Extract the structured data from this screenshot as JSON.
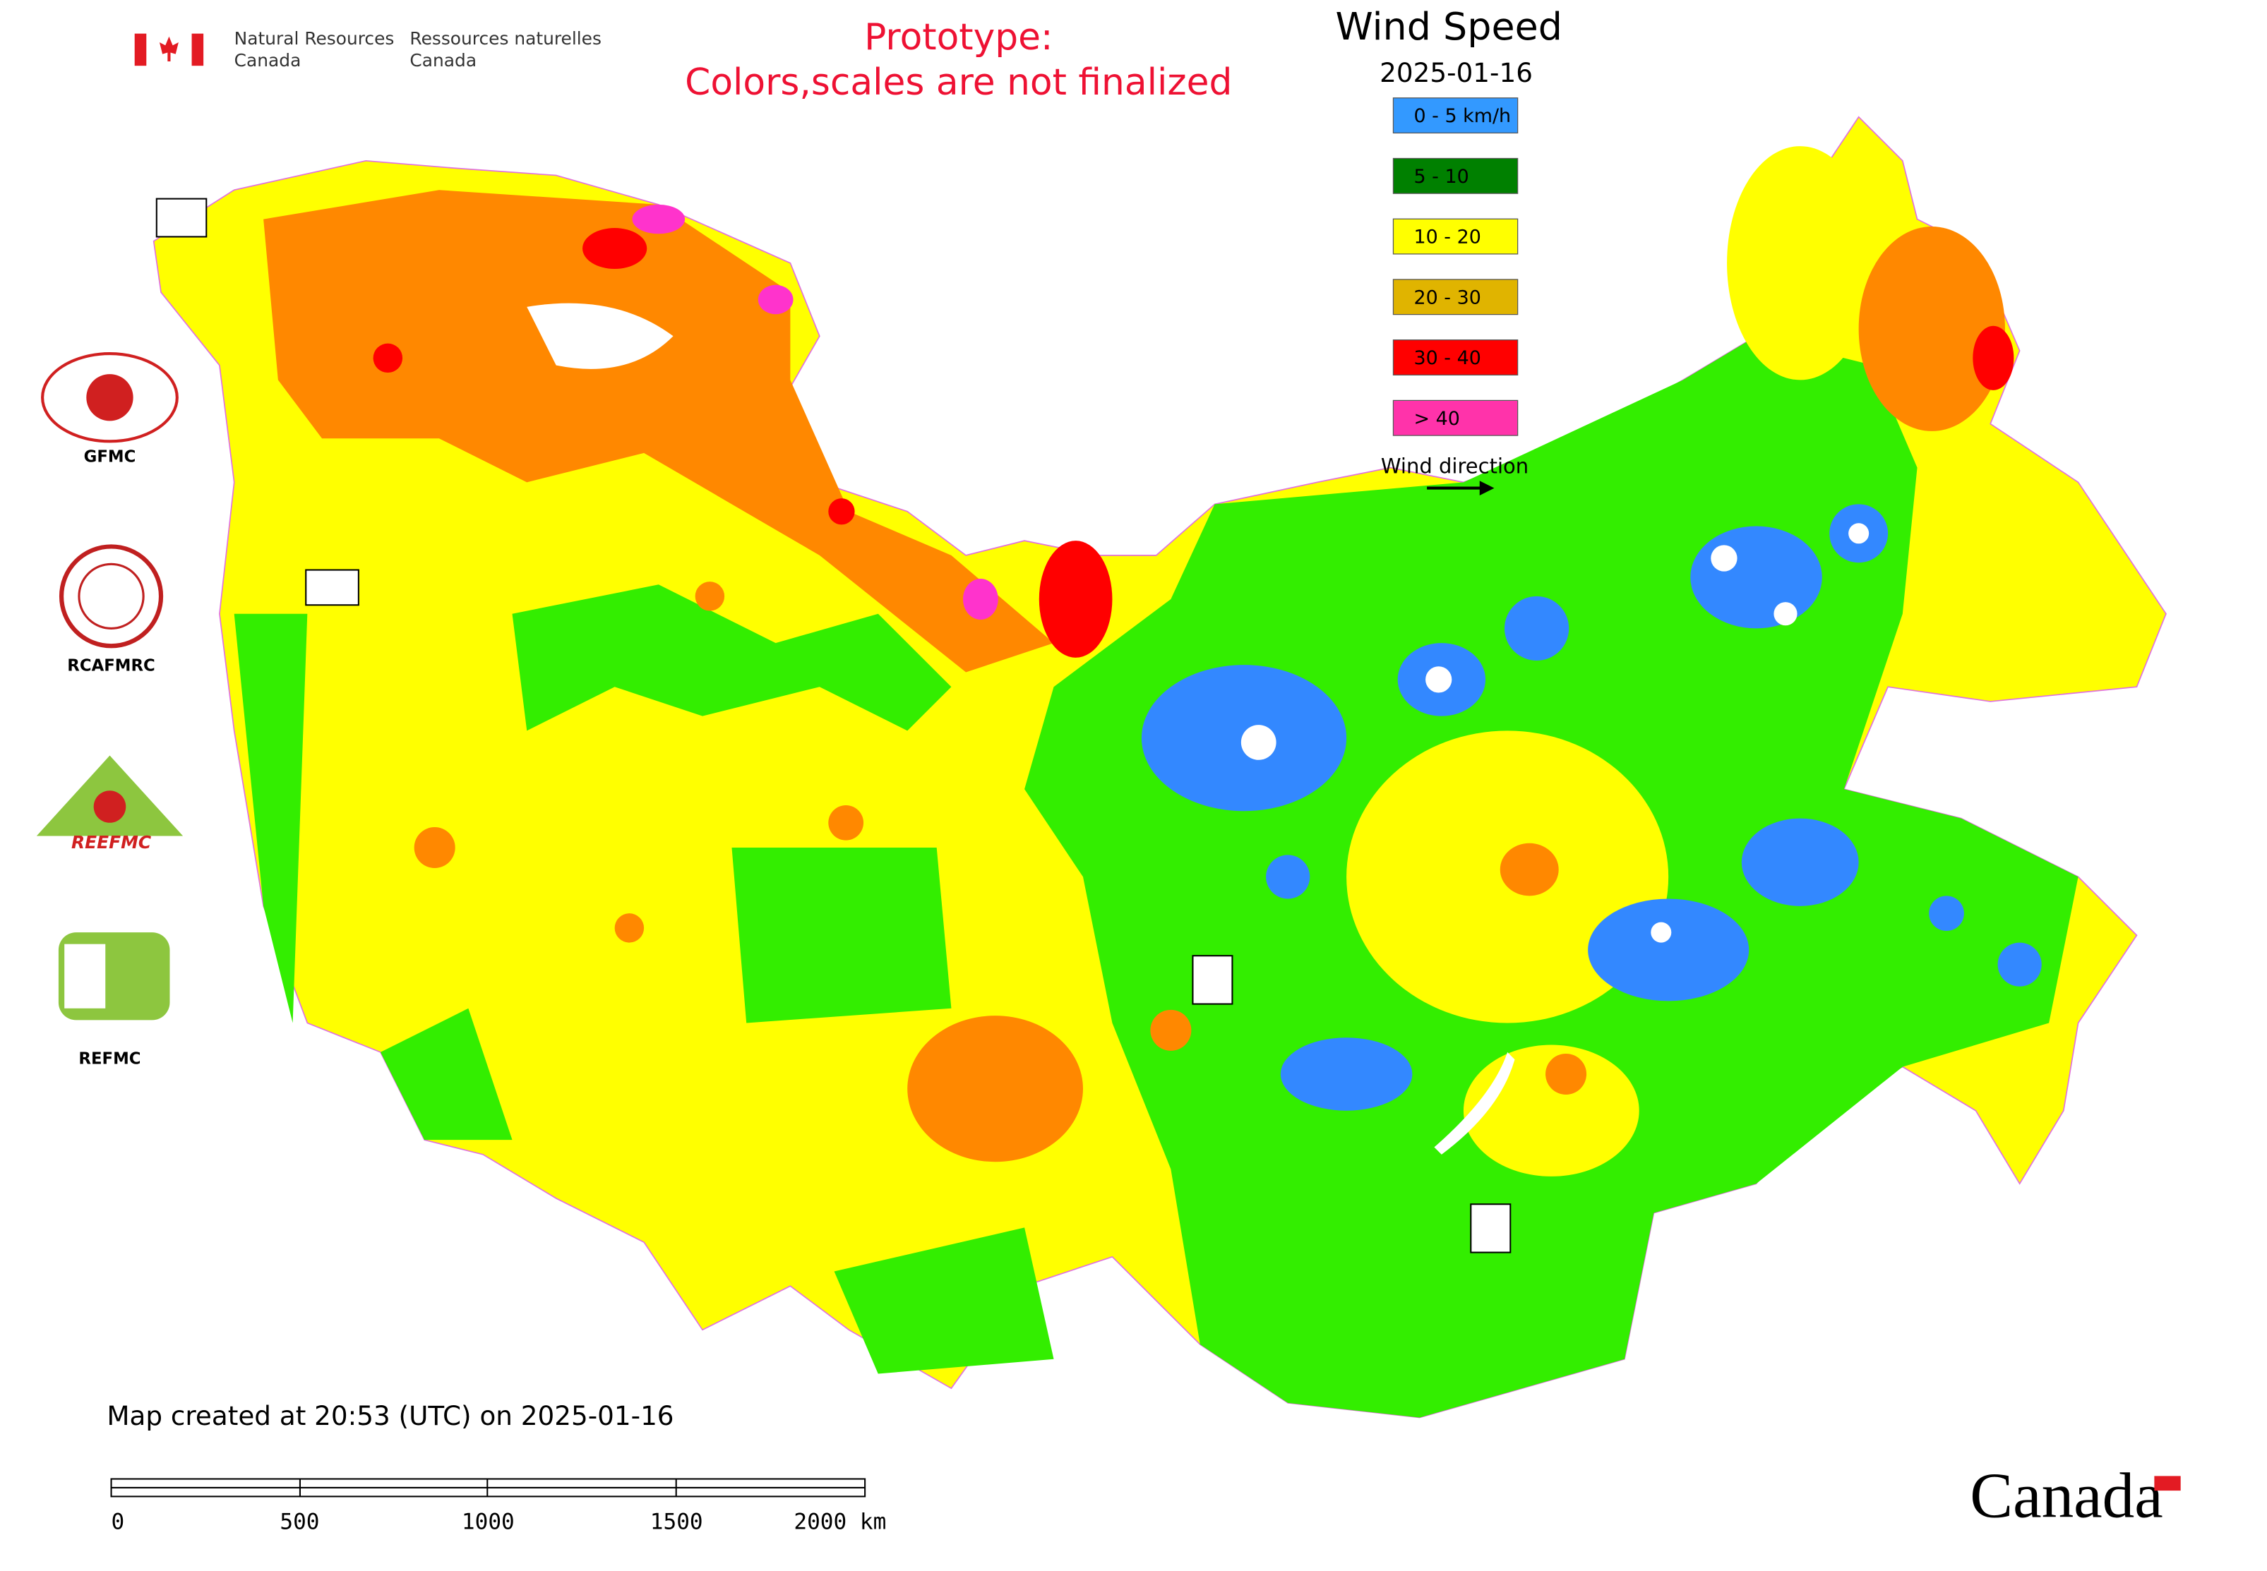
{
  "header": {
    "org_en_1": "Natural Resources",
    "org_en_2": "Canada",
    "org_fr_1": "Ressources naturelles",
    "org_fr_2": "Canada"
  },
  "notice": [
    "Prototype:",
    "Colors,scales are not finalized"
  ],
  "legend": {
    "title": "Wind Speed",
    "date": "2025-01-16",
    "items": [
      {
        "label": "0 - 5 km/h",
        "color": "#3399ff"
      },
      {
        "label": "5 - 10",
        "color": "#008000"
      },
      {
        "label": "10 - 20",
        "color": "#ffff00"
      },
      {
        "label": "20 - 30",
        "color": "#e0b400"
      },
      {
        "label": "30 - 40",
        "color": "#ff0000"
      },
      {
        "label": "> 40",
        "color": "#ff33aa"
      }
    ],
    "direction_label": "Wind direction"
  },
  "logos": [
    "GFMC",
    "RCAFMRC",
    "REEFMC",
    "REFMC"
  ],
  "footer": "Map created at 20:53 (UTC) on 2025-01-16",
  "scale_bar": {
    "labels": [
      "0",
      "500",
      "1000",
      "1500",
      "2000 km"
    ]
  },
  "brand": "Canada"
}
